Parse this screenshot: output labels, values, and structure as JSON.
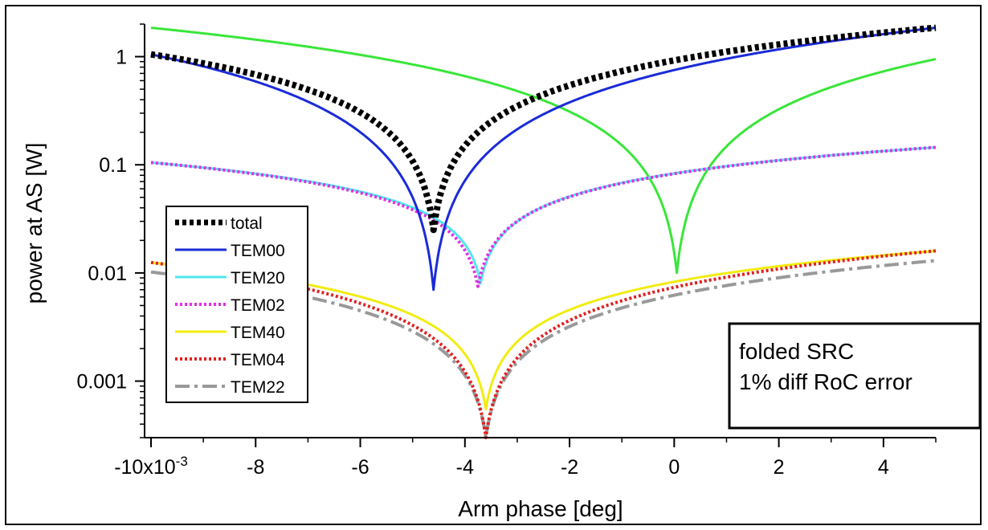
{
  "chart_data": {
    "type": "line",
    "title": "",
    "xlabel": "Arm phase [deg]",
    "ylabel": "power at AS [W]",
    "x_scale_label": "x10",
    "x_scale_exponent": "-3",
    "xlim": [
      -10,
      5
    ],
    "ylim": [
      0.0003,
      2.0
    ],
    "y_scale": "log",
    "x_ticks": [
      -10,
      -8,
      -6,
      -4,
      -2,
      0,
      2,
      4
    ],
    "x_tick_labels": [
      "-10",
      "-8",
      "-6",
      "-4",
      "-2",
      "0",
      "2",
      "4"
    ],
    "y_ticks": [
      1,
      0.1,
      0.01,
      0.001
    ],
    "y_tick_labels": [
      "1",
      "0.1",
      "0.01",
      "0.001"
    ],
    "grid": false,
    "legend_position": "lower-left",
    "annotation": [
      "folded SRC",
      "1% diff RoC error"
    ],
    "series": [
      {
        "name": "total",
        "color": "#000000",
        "style": "dotted-thick",
        "dip_x": -4.6,
        "dip_min": 0.025,
        "left_val": 1.05,
        "right_val": 1.85
      },
      {
        "name": "TEM00",
        "color": "#1a2bd8",
        "style": "solid",
        "dip_x": -4.6,
        "dip_min": 0.007,
        "left_val": 1.05,
        "right_val": 1.85
      },
      {
        "name": "TEM20",
        "color": "#4fe8f0",
        "style": "solid",
        "dip_x": -3.7,
        "dip_min": 0.008,
        "left_val": 0.105,
        "right_val": 0.145
      },
      {
        "name": "TEM02",
        "color": "#e030e0",
        "style": "dotted",
        "dip_x": -3.75,
        "dip_min": 0.0075,
        "left_val": 0.105,
        "right_val": 0.145
      },
      {
        "name": "TEM40",
        "color": "#f2ec10",
        "style": "solid",
        "dip_x": -3.6,
        "dip_min": 0.00055,
        "left_val": 0.0125,
        "right_val": 0.016
      },
      {
        "name": "TEM04",
        "color": "#e02020",
        "style": "dotted",
        "dip_x": -3.6,
        "dip_min": 0.0003,
        "left_val": 0.0125,
        "right_val": 0.016
      },
      {
        "name": "TEM22",
        "color": "#999999",
        "style": "dash-dot",
        "dip_x": -3.6,
        "dip_min": 0.0003,
        "left_val": 0.0102,
        "right_val": 0.013
      },
      {
        "name": "",
        "color": "#39e639",
        "style": "solid",
        "dip_x": 0.05,
        "dip_min": 0.01,
        "left_val": 1.85,
        "right_val": 0.95
      }
    ]
  }
}
